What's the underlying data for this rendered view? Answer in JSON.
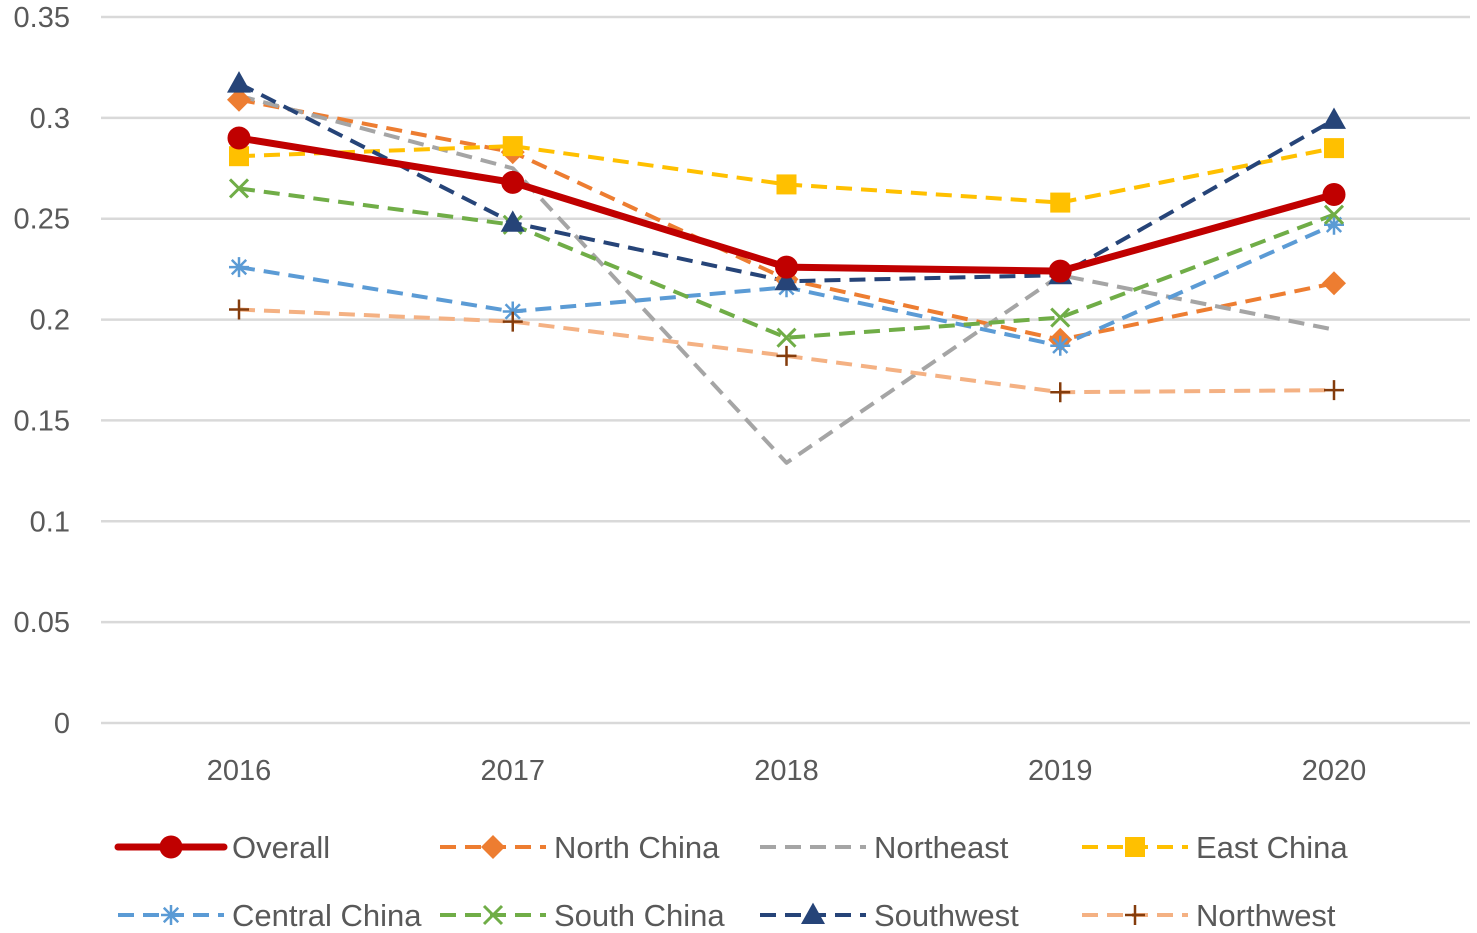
{
  "chart_data": {
    "type": "line",
    "title": "",
    "xlabel": "",
    "ylabel": "",
    "categories": [
      "2016",
      "2017",
      "2018",
      "2019",
      "2020"
    ],
    "ylim": [
      0,
      0.35
    ],
    "yticks": [
      {
        "value": 0,
        "label": "0"
      },
      {
        "value": 0.05,
        "label": "0.05"
      },
      {
        "value": 0.1,
        "label": "0.1"
      },
      {
        "value": 0.15,
        "label": "0.15"
      },
      {
        "value": 0.2,
        "label": "0.2"
      },
      {
        "value": 0.25,
        "label": "0.25"
      },
      {
        "value": 0.3,
        "label": "0.3"
      },
      {
        "value": 0.35,
        "label": "0.35"
      }
    ],
    "grid": true,
    "legend_position": "bottom",
    "series": [
      {
        "name": "North China",
        "color": "#ED7D31",
        "dash": "dashed",
        "marker": "diamond",
        "values": [
          0.309,
          0.283,
          0.22,
          0.19,
          0.218
        ]
      },
      {
        "name": "Northeast",
        "color": "#A5A5A5",
        "dash": "dashed",
        "marker": "none",
        "values": [
          0.311,
          0.275,
          0.129,
          0.222,
          0.195
        ]
      },
      {
        "name": "East China",
        "color": "#FFC000",
        "dash": "dashed",
        "marker": "square",
        "values": [
          0.281,
          0.286,
          0.267,
          0.258,
          0.285
        ]
      },
      {
        "name": "Central China",
        "color": "#5B9BD5",
        "dash": "dashed",
        "marker": "asterisk",
        "values": [
          0.226,
          0.204,
          0.216,
          0.187,
          0.247
        ]
      },
      {
        "name": "South China",
        "color": "#70AD47",
        "dash": "dashed",
        "marker": "x",
        "values": [
          0.265,
          0.247,
          0.191,
          0.201,
          0.252
        ]
      },
      {
        "name": "Southwest",
        "color": "#264478",
        "dash": "dashed",
        "marker": "triangle",
        "values": [
          0.317,
          0.248,
          0.219,
          0.222,
          0.299
        ]
      },
      {
        "name": "Northwest",
        "color": "#F4B183",
        "dash": "dashed",
        "marker": "plus",
        "markerColor": "#843C0C",
        "values": [
          0.205,
          0.199,
          0.182,
          0.164,
          0.165
        ]
      },
      {
        "name": "Overall",
        "color": "#C00000",
        "dash": "solid",
        "marker": "circle",
        "values": [
          0.29,
          0.268,
          0.226,
          0.224,
          0.262
        ]
      }
    ],
    "legend_order": [
      "Overall",
      "North China",
      "Northeast",
      "East China",
      "Central China",
      "South China",
      "Southwest",
      "Northwest"
    ]
  }
}
